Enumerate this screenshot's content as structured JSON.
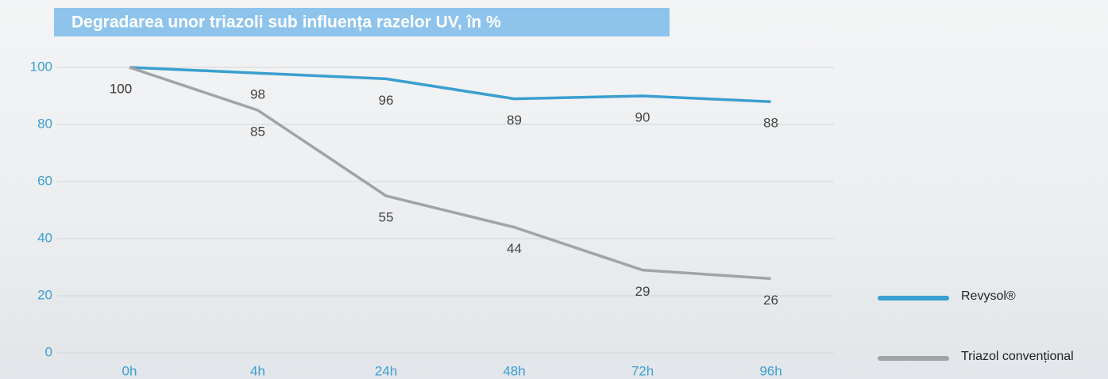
{
  "chart_data": {
    "type": "line",
    "title": "Degradarea unor triazoli sub influența razelor UV, în %",
    "categories": [
      "0h",
      "4h",
      "24h",
      "48h",
      "72h",
      "96h"
    ],
    "series": [
      {
        "name": "Revysol®",
        "color": "#3a9fd0",
        "values": [
          100,
          98,
          96,
          89,
          90,
          88
        ]
      },
      {
        "name": "Triazol convențional",
        "color": "#a2a3a7",
        "values": [
          100,
          85,
          55,
          44,
          29,
          26
        ]
      }
    ],
    "ylim": [
      0,
      100
    ],
    "yticks": [
      0,
      20,
      40,
      60,
      80,
      100
    ],
    "grid": true
  }
}
